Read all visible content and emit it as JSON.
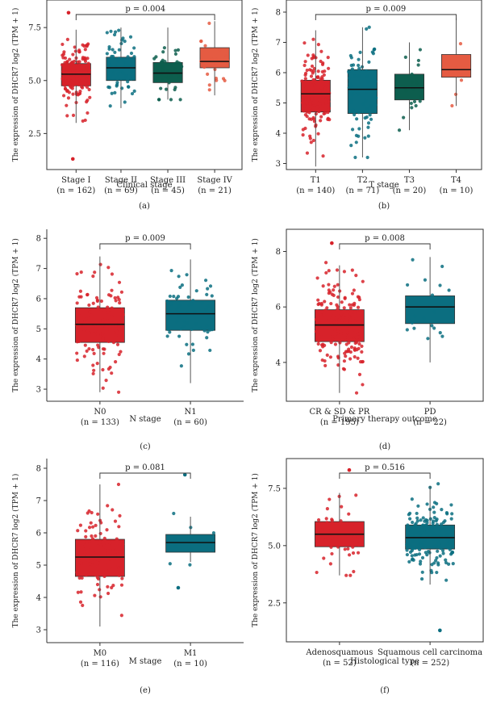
{
  "colors": {
    "red": "#d7222a",
    "teal": "#0b6e80",
    "green": "#0d5e4e",
    "orange": "#e55b42",
    "axis": "#333333"
  },
  "ylabel": "The expression of DHCR7 log2 (TPM + 1)",
  "chart_data": [
    {
      "id": "a",
      "panel_label": "(a)",
      "type": "boxplot",
      "xlabel": "Clinical stage",
      "ylabel": "The expression of DHCR7 log2 (TPM + 1)",
      "ylim": [
        0.8,
        8.8
      ],
      "yticks": [
        2.5,
        5.0,
        7.5
      ],
      "ytick_labels": [
        "2.5",
        "5.0",
        "7.5"
      ],
      "pvalue": "p = 0.004",
      "bracket": [
        0,
        3
      ],
      "groups": [
        {
          "name": "Stage I",
          "n_label": "(n = 162)",
          "n": 162,
          "color": "red",
          "min": 3.0,
          "q1": 4.75,
          "median": 5.3,
          "q3": 5.8,
          "max": 7.4,
          "outliers": [
            1.3,
            8.2
          ],
          "jmin": 2.8,
          "jmax": 7.5
        },
        {
          "name": "Stage II",
          "n_label": "(n = 69)",
          "n": 69,
          "color": "teal",
          "min": 3.7,
          "q1": 5.0,
          "median": 5.6,
          "q3": 6.1,
          "max": 7.5,
          "outliers": [],
          "jmin": 3.8,
          "jmax": 7.4
        },
        {
          "name": "Stage III",
          "n_label": "(n = 45)",
          "n": 45,
          "color": "green",
          "min": 4.1,
          "q1": 4.9,
          "median": 5.35,
          "q3": 5.85,
          "max": 7.5,
          "outliers": [],
          "jmin": 4.1,
          "jmax": 7.5
        },
        {
          "name": "Stage IV",
          "n_label": "(n = 21)",
          "n": 21,
          "color": "orange",
          "min": 4.3,
          "q1": 5.6,
          "median": 5.9,
          "q3": 6.55,
          "max": 7.8,
          "outliers": [],
          "jmin": 4.3,
          "jmax": 7.7
        }
      ]
    },
    {
      "id": "b",
      "panel_label": "(b)",
      "type": "boxplot",
      "xlabel": "T stage",
      "ylabel": "The expression of DHCR7 log2 (TPM + 1)",
      "ylim": [
        2.8,
        8.4
      ],
      "yticks": [
        3,
        4,
        5,
        6,
        7,
        8
      ],
      "ytick_labels": [
        "3",
        "4",
        "5",
        "6",
        "7",
        "8"
      ],
      "pvalue": "p = 0.009",
      "bracket": [
        0,
        3
      ],
      "groups": [
        {
          "name": "T1",
          "n_label": "(n = 140)",
          "n": 140,
          "color": "red",
          "min": 2.9,
          "q1": 4.7,
          "median": 5.3,
          "q3": 5.75,
          "max": 7.4,
          "outliers": [],
          "jmin": 2.9,
          "jmax": 7.4
        },
        {
          "name": "T2",
          "n_label": "(n = 71)",
          "n": 71,
          "color": "teal",
          "min": 3.2,
          "q1": 4.65,
          "median": 5.45,
          "q3": 6.1,
          "max": 7.5,
          "outliers": [],
          "jmin": 3.2,
          "jmax": 7.5
        },
        {
          "name": "T3",
          "n_label": "(n = 20)",
          "n": 20,
          "color": "green",
          "min": 4.1,
          "q1": 5.1,
          "median": 5.5,
          "q3": 5.95,
          "max": 7.0,
          "outliers": [],
          "jmin": 4.1,
          "jmax": 7.0
        },
        {
          "name": "T4",
          "n_label": "(n = 10)",
          "n": 10,
          "color": "orange",
          "min": 4.9,
          "q1": 5.85,
          "median": 6.1,
          "q3": 6.6,
          "max": 7.8,
          "outliers": [],
          "jmin": 4.9,
          "jmax": 7.8
        }
      ]
    },
    {
      "id": "c",
      "panel_label": "(c)",
      "type": "boxplot",
      "xlabel": "N stage",
      "ylabel": "The expression of DHCR7 log2 (TPM + 1)",
      "ylim": [
        2.6,
        8.3
      ],
      "yticks": [
        3,
        4,
        5,
        6,
        7,
        8
      ],
      "ytick_labels": [
        "3",
        "4",
        "5",
        "6",
        "7",
        "8"
      ],
      "pvalue": "p = 0.009",
      "bracket": [
        0,
        1
      ],
      "groups": [
        {
          "name": "N0",
          "n_label": "(n = 133)",
          "n": 133,
          "color": "red",
          "min": 2.9,
          "q1": 4.55,
          "median": 5.15,
          "q3": 5.7,
          "max": 7.4,
          "outliers": [],
          "jmin": 2.9,
          "jmax": 7.5
        },
        {
          "name": "N1",
          "n_label": "(n = 60)",
          "n": 60,
          "color": "teal",
          "min": 3.2,
          "q1": 4.95,
          "median": 5.5,
          "q3": 5.95,
          "max": 7.3,
          "outliers": [],
          "jmin": 3.2,
          "jmax": 7.3
        }
      ]
    },
    {
      "id": "d",
      "panel_label": "(d)",
      "type": "boxplot",
      "xlabel": "Primary therapy outcome",
      "ylabel": "The expression of DHCR7 log2 (TPM + 1)",
      "ylim": [
        2.6,
        8.8
      ],
      "yticks": [
        4,
        6,
        8
      ],
      "ytick_labels": [
        "4",
        "6",
        "8"
      ],
      "pvalue": "p = 0.008",
      "bracket": [
        0,
        1
      ],
      "groups": [
        {
          "name": "CR & SD & PR",
          "n_label": "(n = 195)",
          "n": 195,
          "color": "red",
          "min": 2.9,
          "q1": 4.75,
          "median": 5.35,
          "q3": 5.9,
          "max": 7.5,
          "outliers": [
            8.3
          ],
          "jmin": 2.9,
          "jmax": 7.6
        },
        {
          "name": "PD",
          "n_label": "(n = 22)",
          "n": 22,
          "color": "teal",
          "min": 4.0,
          "q1": 5.4,
          "median": 6.0,
          "q3": 6.4,
          "max": 7.8,
          "outliers": [],
          "jmin": 4.0,
          "jmax": 7.8
        }
      ]
    },
    {
      "id": "e",
      "panel_label": "(e)",
      "type": "boxplot",
      "xlabel": "M stage",
      "ylabel": "The expression of DHCR7 log2 (TPM + 1)",
      "ylim": [
        2.6,
        8.3
      ],
      "yticks": [
        3,
        4,
        5,
        6,
        7,
        8
      ],
      "ytick_labels": [
        "3",
        "4",
        "5",
        "6",
        "7",
        "8"
      ],
      "pvalue": "p = 0.081",
      "bracket": [
        0,
        1
      ],
      "groups": [
        {
          "name": "M0",
          "n_label": "(n = 116)",
          "n": 116,
          "color": "red",
          "min": 3.1,
          "q1": 4.65,
          "median": 5.25,
          "q3": 5.8,
          "max": 7.5,
          "outliers": [],
          "jmin": 2.9,
          "jmax": 7.5
        },
        {
          "name": "M1",
          "n_label": "(n = 10)",
          "n": 10,
          "color": "teal",
          "min": 5.1,
          "q1": 5.4,
          "median": 5.7,
          "q3": 5.95,
          "max": 6.5,
          "outliers": [
            4.3,
            7.8
          ],
          "jmin": 5.0,
          "jmax": 6.6
        }
      ]
    },
    {
      "id": "f",
      "panel_label": "(f)",
      "type": "boxplot",
      "xlabel": "Histological type",
      "ylabel": "The expression of DHCR7 log2 (TPM + 1)",
      "ylim": [
        0.8,
        8.8
      ],
      "yticks": [
        2.5,
        5.0,
        7.5
      ],
      "ytick_labels": [
        "2.5",
        "5.0",
        "7.5"
      ],
      "pvalue": "p = 0.516",
      "bracket": [
        0,
        1
      ],
      "groups": [
        {
          "name": "Adenosquamous",
          "n_label": "(n = 52)",
          "n": 52,
          "color": "red",
          "min": 3.7,
          "q1": 4.95,
          "median": 5.5,
          "q3": 6.05,
          "max": 7.3,
          "outliers": [
            8.3
          ],
          "jmin": 3.7,
          "jmax": 7.2
        },
        {
          "name": "Squamous cell carcinoma",
          "n_label": "(n = 252)",
          "n": 252,
          "color": "teal",
          "min": 3.3,
          "q1": 4.85,
          "median": 5.35,
          "q3": 5.9,
          "max": 7.6,
          "outliers": [
            1.3
          ],
          "jmin": 2.8,
          "jmax": 7.7
        }
      ]
    }
  ]
}
